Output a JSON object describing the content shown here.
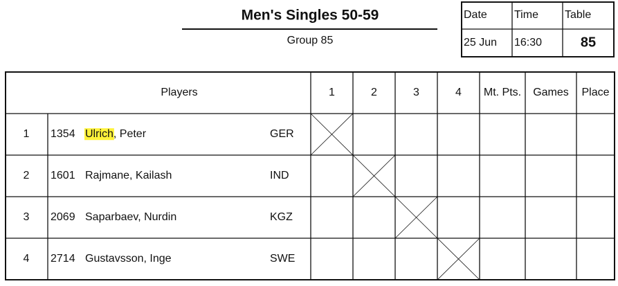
{
  "header": {
    "title": "Men's Singles 50-59",
    "subtitle": "Group 85"
  },
  "info": {
    "headers": [
      "Date",
      "Time",
      "Table"
    ],
    "values": [
      "25 Jun",
      "16:30",
      "85"
    ]
  },
  "table": {
    "columns": [
      "Players",
      "1",
      "2",
      "3",
      "4",
      "Mt. Pts.",
      "Games",
      "Place"
    ],
    "rows": [
      {
        "number": "1",
        "id": "1354",
        "surname": "Ulrich",
        "rest": ", Peter",
        "country": "GER",
        "highlighted": true
      },
      {
        "number": "2",
        "id": "1601",
        "surname": "Rajmane",
        "rest": ", Kailash",
        "country": "IND",
        "highlighted": false
      },
      {
        "number": "3",
        "id": "2069",
        "surname": "Saparbaev",
        "rest": ", Nurdin",
        "country": "KGZ",
        "highlighted": false
      },
      {
        "number": "4",
        "id": "2714",
        "surname": "Gustavsson",
        "rest": ", Inge",
        "country": "SWE",
        "highlighted": false
      }
    ]
  }
}
